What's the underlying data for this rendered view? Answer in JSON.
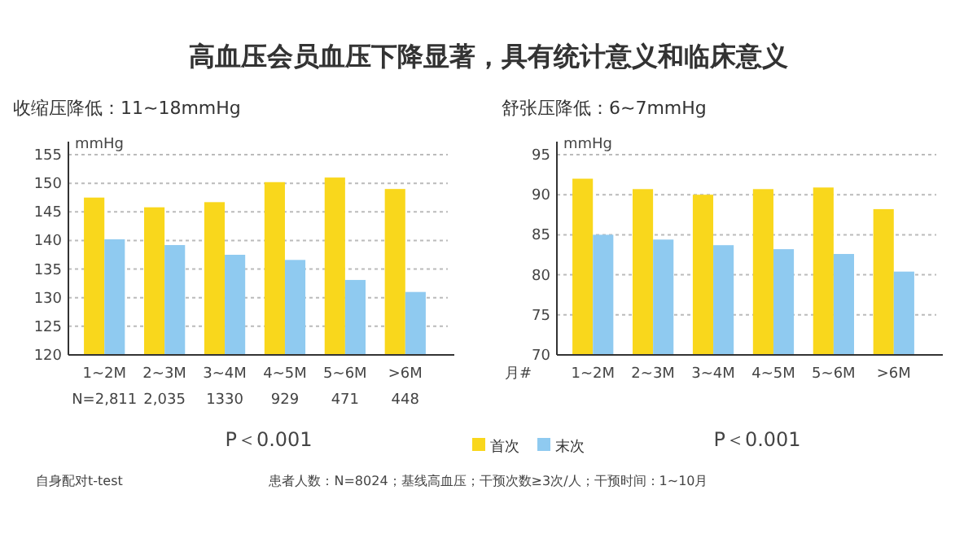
{
  "chart_data": [
    {
      "type": "bar",
      "title": "高血压会员血压下降显著，具有统计意义和临床意义",
      "subtitle": "收缩压降低：11~18mmHg",
      "ylabel": "mmHg",
      "categories": [
        "1~2M",
        "2~3M",
        "3~4M",
        "4~5M",
        "5~6M",
        ">6M"
      ],
      "series": [
        {
          "name": "首次",
          "color": "#f9d71c",
          "values": [
            147.5,
            145.8,
            146.7,
            150.2,
            151,
            149
          ]
        },
        {
          "name": "末次",
          "color": "#8fcaf0",
          "values": [
            140.2,
            139.2,
            137.5,
            136.6,
            133.1,
            131
          ]
        }
      ],
      "ylim": [
        120,
        155
      ],
      "yticks": [
        120,
        125,
        130,
        135,
        140,
        145,
        150,
        155
      ],
      "grid": "y",
      "legend": "bottom right",
      "annotations": [
        "N=2,811",
        "2,035",
        "1330",
        "929",
        "471",
        "448",
        "P＜0.001",
        "自身配对t-test"
      ]
    },
    {
      "type": "bar",
      "subtitle": "舒张压降低：6~7mmHg",
      "ylabel": "mmHg",
      "xlabel": "月#",
      "categories": [
        "1~2M",
        "2~3M",
        "3~4M",
        "4~5M",
        "5~6M",
        ">6M"
      ],
      "series": [
        {
          "color": "#f9d71c",
          "values": [
            92,
            90.7,
            90,
            90.7,
            90.9,
            88.2
          ]
        },
        {
          "color": "#8fcaf0",
          "values": [
            85,
            84.4,
            83.7,
            83.2,
            82.6,
            80.4
          ]
        }
      ],
      "ylim": [
        70,
        95
      ],
      "yticks": [
        70,
        75,
        80,
        85,
        90,
        95
      ],
      "grid": "y",
      "annotations": [
        "P＜0.001",
        "患者人数：N=8024；基线高血压；干预次数≥3次/人；干预时间：1~10月"
      ]
    }
  ]
}
